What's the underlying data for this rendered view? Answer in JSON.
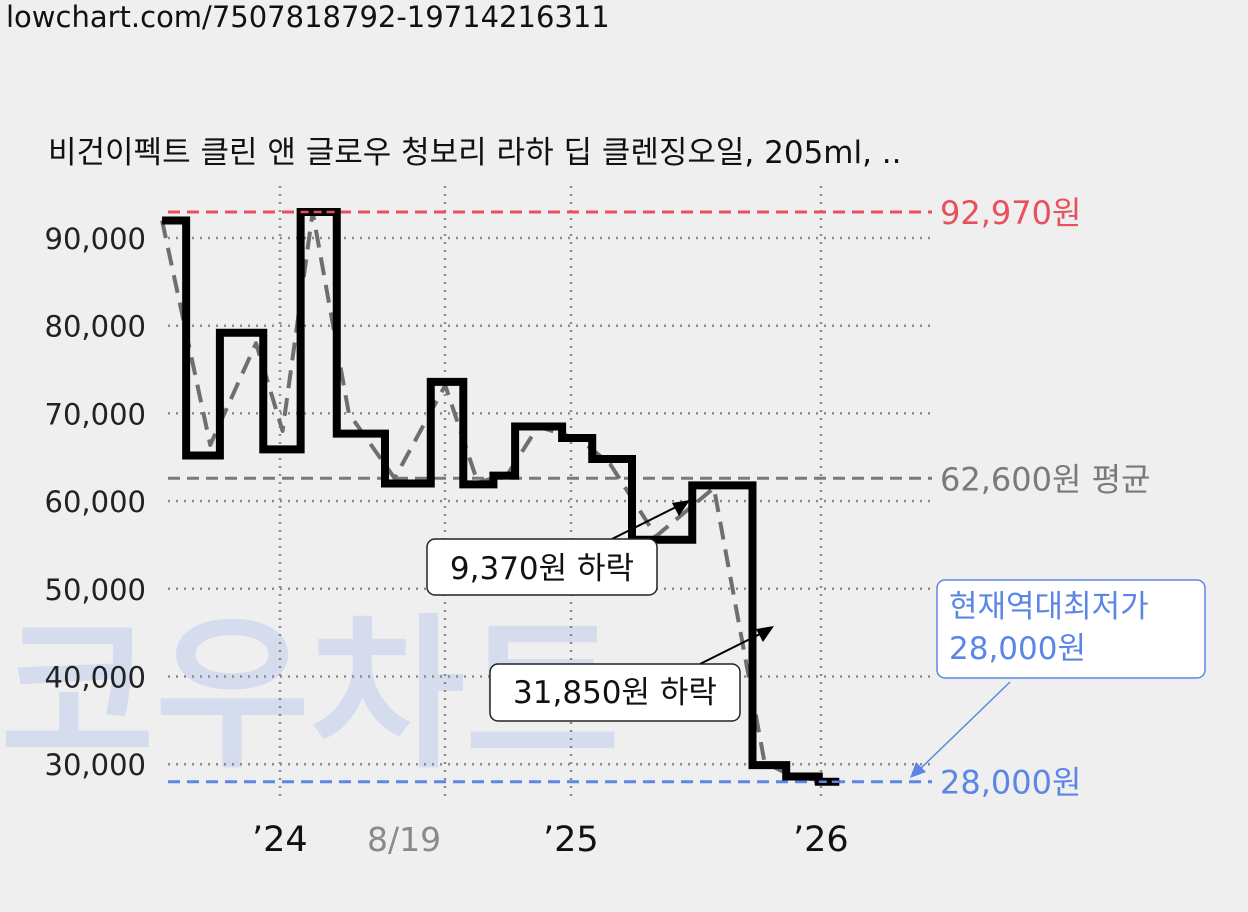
{
  "url": "lowchart.com/7507818792-19714216311",
  "chart_data": {
    "type": "line",
    "title": "비건이펙트 클린 앤 글로우 청보리 라하 딥 클렌징오일, 205ml, ..",
    "y_ticks": [
      "90,000",
      "80,000",
      "70,000",
      "60,000",
      "50,000",
      "40,000",
      "30,000"
    ],
    "y_tick_values": [
      90000,
      80000,
      70000,
      60000,
      50000,
      40000,
      30000
    ],
    "ylim": [
      25500,
      96000
    ],
    "x_ticks": [
      {
        "label": "’24",
        "value": 0,
        "highlight": false
      },
      {
        "label": "8/19",
        "value": 1,
        "highlight": true
      },
      {
        "label": "’25",
        "value": 2,
        "highlight": false
      },
      {
        "label": "’26",
        "value": 3,
        "highlight": false
      }
    ],
    "price_steps": [
      {
        "x": 0.1,
        "y": 92000
      },
      {
        "x": 0.3,
        "y": 65200
      },
      {
        "x": 0.58,
        "y": 79200
      },
      {
        "x": 0.94,
        "y": 65900
      },
      {
        "x": 1.25,
        "y": 92970
      },
      {
        "x": 1.55,
        "y": 67700
      },
      {
        "x": 1.95,
        "y": 62000
      },
      {
        "x": 2.33,
        "y": 73600
      },
      {
        "x": 2.6,
        "y": 61900
      },
      {
        "x": 2.85,
        "y": 62900
      },
      {
        "x": 3.03,
        "y": 68500
      },
      {
        "x": 3.42,
        "y": 67200
      },
      {
        "x": 3.67,
        "y": 64800
      },
      {
        "x": 4.0,
        "y": 55600
      },
      {
        "x": 4.5,
        "y": 61800
      },
      {
        "x": 5.0,
        "y": 29900
      },
      {
        "x": 5.28,
        "y": 28600
      },
      {
        "x": 5.55,
        "y": 28000
      },
      {
        "x": 5.72,
        "y": 28000
      }
    ],
    "average_line": {
      "points": [
        {
          "x": 0.1,
          "y": 92000
        },
        {
          "x": 0.5,
          "y": 66400
        },
        {
          "x": 0.88,
          "y": 78000
        },
        {
          "x": 1.1,
          "y": 68000
        },
        {
          "x": 1.35,
          "y": 92970
        },
        {
          "x": 1.65,
          "y": 70000
        },
        {
          "x": 2.03,
          "y": 62600
        },
        {
          "x": 2.45,
          "y": 73200
        },
        {
          "x": 2.72,
          "y": 62100
        },
        {
          "x": 2.97,
          "y": 63100
        },
        {
          "x": 3.22,
          "y": 68500
        },
        {
          "x": 3.57,
          "y": 67000
        },
        {
          "x": 3.82,
          "y": 64200
        },
        {
          "x": 4.2,
          "y": 56000
        },
        {
          "x": 4.68,
          "y": 61500
        },
        {
          "x": 5.1,
          "y": 30200
        },
        {
          "x": 5.35,
          "y": 28500
        },
        {
          "x": 5.72,
          "y": 28000
        }
      ]
    },
    "reference_lines": [
      {
        "value": 92970,
        "label": "92,970원",
        "color": "#e8505b"
      },
      {
        "value": 62600,
        "label": "62,600원 평균",
        "color": "#7a7a7a"
      },
      {
        "value": 28000,
        "label": "28,000원",
        "color": "#5b86e5"
      }
    ],
    "annotations": [
      {
        "label": "9,370원 하락"
      },
      {
        "label": "31,850원 하락"
      },
      {
        "label_line1": "현재역대최저가",
        "label_line2": "28,000원",
        "color": "#5b86e5"
      }
    ]
  },
  "watermark": "코우차트",
  "colors": {
    "background": "#efefef",
    "line": "#000000",
    "trend": "#6f6f6f",
    "max": "#e8505b",
    "min": "#5b86e5",
    "avg": "#7a7a7a"
  }
}
